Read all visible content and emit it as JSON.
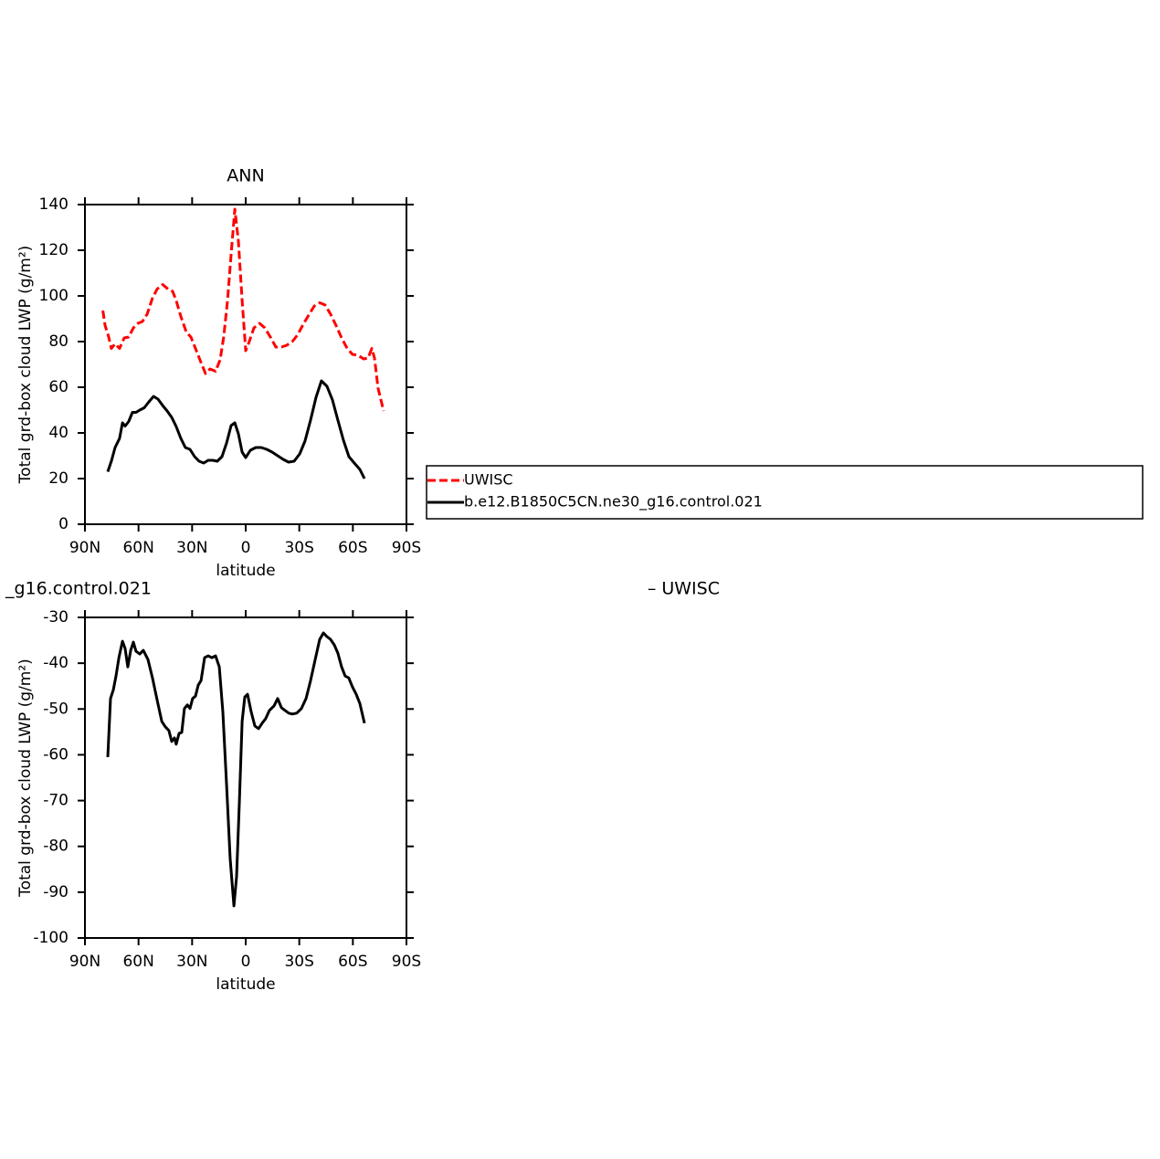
{
  "chart_data": [
    {
      "type": "line",
      "title": "ANN",
      "x_label": "latitude",
      "y_label": "Total grd-box cloud LWP (g/m²)",
      "xlim": [
        90,
        -90
      ],
      "xticks": [
        {
          "value": 90,
          "label": "90N"
        },
        {
          "value": 60,
          "label": "60N"
        },
        {
          "value": 30,
          "label": "30N"
        },
        0,
        {
          "value": -30,
          "label": "30S"
        },
        {
          "value": -60,
          "label": "60S"
        },
        {
          "value": -90,
          "label": "90S"
        }
      ],
      "ylim": [
        0,
        140
      ],
      "yticks": [
        0,
        20,
        40,
        60,
        80,
        100,
        120,
        140
      ],
      "legend": "right",
      "series": [
        {
          "name": "UWISC",
          "color": "#ff0000",
          "style": "dashed",
          "x": [
            80,
            78.7,
            76.7,
            75.2,
            73.1,
            70.6,
            68,
            65.5,
            62.9,
            60.3,
            57.8,
            55.2,
            52.2,
            49.6,
            46.5,
            43.5,
            40.9,
            38.9,
            36.3,
            33.2,
            30.7,
            27.6,
            25.1,
            22.5,
            20,
            16.9,
            14.3,
            12.3,
            10.2,
            8.2,
            6.1,
            4.1,
            2.0,
            0,
            -2.0,
            -4.6,
            -7.7,
            -10.7,
            -13.8,
            -16.9,
            -20,
            -23,
            -26.1,
            -29.1,
            -32.2,
            -35.3,
            -38.4,
            -41.4,
            -44.5,
            -47.5,
            -50.6,
            -53.7,
            -56.8,
            -59.8,
            -62.9,
            -66,
            -68.5,
            -70.6,
            -72.1,
            -74.1,
            -77.2
          ],
          "values": [
            93.6,
            87,
            82,
            77,
            79,
            77,
            81.6,
            82,
            86,
            88,
            88.8,
            92,
            99,
            103,
            105,
            103,
            102,
            98,
            91,
            84,
            82,
            76,
            71,
            66,
            68,
            67,
            72,
            82,
            98,
            118,
            138,
            124,
            98,
            76,
            80,
            86,
            88,
            86,
            82,
            77.6,
            77.6,
            78.4,
            80,
            83,
            87.6,
            91.6,
            95.6,
            97,
            96,
            92,
            87,
            81.6,
            77,
            74.4,
            74,
            72.4,
            72.8,
            77,
            72.8,
            59.6,
            49.6
          ]
        },
        {
          "name": "b.e12.B1850C5CN.ne30_g16.control.021",
          "color": "#000000",
          "style": "solid",
          "x": [
            77.2,
            75.2,
            73.1,
            70.6,
            69,
            67.5,
            65.5,
            63.4,
            61.4,
            59.3,
            56.8,
            54.2,
            51.6,
            49.1,
            46.5,
            44,
            41.4,
            38.9,
            36.3,
            33.8,
            31.2,
            28.6,
            26.1,
            23.5,
            21,
            18.4,
            15.9,
            13.3,
            10.7,
            8.2,
            6.1,
            4.1,
            2.0,
            0,
            -2.6,
            -5.6,
            -8.7,
            -11.8,
            -14.8,
            -17.9,
            -21,
            -24,
            -27.1,
            -30.2,
            -33.2,
            -36.3,
            -39.4,
            -42.4,
            -45.5,
            -48.6,
            -51.6,
            -54.7,
            -57.8,
            -60.8,
            -63.9,
            -66.5
          ],
          "values": [
            23,
            27.6,
            33.6,
            37.6,
            44.4,
            43,
            45,
            49,
            49,
            50,
            51,
            53.6,
            56,
            54.8,
            52,
            49.6,
            46.8,
            42.8,
            37.6,
            33.6,
            32.8,
            29.6,
            27.6,
            26.8,
            28,
            28,
            27.6,
            29.6,
            35.6,
            43.2,
            44.4,
            39.6,
            31.6,
            29.2,
            32.4,
            33.6,
            33.6,
            32.8,
            31.6,
            30,
            28.4,
            27.2,
            27.6,
            30.8,
            36.4,
            45.6,
            55.6,
            62.8,
            60.4,
            54.4,
            45.6,
            36.8,
            29.6,
            26.8,
            24,
            20
          ]
        }
      ]
    },
    {
      "type": "line",
      "left_title": "_g16.control.021",
      "right_title": "– UWISC",
      "x_label": "latitude",
      "y_label": "Total grd-box cloud LWP (g/m²)",
      "xlim": [
        90,
        -90
      ],
      "xticks": [
        {
          "value": 90,
          "label": "90N"
        },
        {
          "value": 60,
          "label": "60N"
        },
        {
          "value": 30,
          "label": "30N"
        },
        0,
        {
          "value": -30,
          "label": "30S"
        },
        {
          "value": -60,
          "label": "60S"
        },
        {
          "value": -90,
          "label": "90S"
        }
      ],
      "ylim": [
        -100,
        -30
      ],
      "yticks": [
        -100,
        -90,
        -80,
        -70,
        -60,
        -50,
        -40,
        -30
      ],
      "series": [
        {
          "color": "#000000",
          "style": "solid",
          "x": [
            77.2,
            75.7,
            74.1,
            72.6,
            71.0,
            69,
            67.5,
            66,
            64.4,
            62.9,
            61.4,
            59.3,
            57.3,
            54.7,
            52.2,
            49.6,
            47,
            45,
            43,
            41.4,
            39.9,
            38.9,
            37.3,
            35.8,
            34.3,
            32.7,
            31.2,
            29.7,
            28.1,
            26.6,
            25,
            23,
            21,
            18.9,
            16.9,
            14.8,
            12.8,
            10.7,
            8.7,
            6.6,
            5.1,
            3.6,
            2.0,
            0.5,
            -1,
            -3.1,
            -5.1,
            -7.2,
            -9.2,
            -11.2,
            -13.3,
            -15.9,
            -17.9,
            -20,
            -22,
            -24.1,
            -26.1,
            -28.6,
            -31.2,
            -33.8,
            -36.3,
            -38.9,
            -41.4,
            -43.5,
            -45.5,
            -47.5,
            -49.6,
            -51.6,
            -53.7,
            -55.7,
            -57.7,
            -59.8,
            -61.9,
            -63.9,
            -66.5
          ],
          "values": [
            -60.5,
            -47.7,
            -45.8,
            -42.8,
            -38.8,
            -35.2,
            -36.8,
            -40.8,
            -37.2,
            -35.4,
            -37.4,
            -38,
            -37.2,
            -39.2,
            -43.2,
            -48,
            -52.7,
            -53.9,
            -54.7,
            -57.1,
            -56.3,
            -57.7,
            -55.3,
            -55.1,
            -49.9,
            -49.1,
            -49.9,
            -47.7,
            -47.2,
            -44.8,
            -43.8,
            -38.8,
            -38.4,
            -38.8,
            -38.4,
            -40.8,
            -50.7,
            -66.7,
            -82.7,
            -93,
            -86.6,
            -70.7,
            -52.7,
            -47.4,
            -46.8,
            -50.7,
            -53.7,
            -54.3,
            -53.1,
            -52.1,
            -50.3,
            -49.3,
            -47.7,
            -49.7,
            -50.3,
            -50.9,
            -51.1,
            -50.9,
            -49.9,
            -47.7,
            -43.8,
            -39.2,
            -34.8,
            -33.4,
            -34.2,
            -34.8,
            -36,
            -37.8,
            -40.8,
            -42.8,
            -43.2,
            -45.2,
            -46.8,
            -48.8,
            -53.1
          ]
        }
      ]
    }
  ]
}
